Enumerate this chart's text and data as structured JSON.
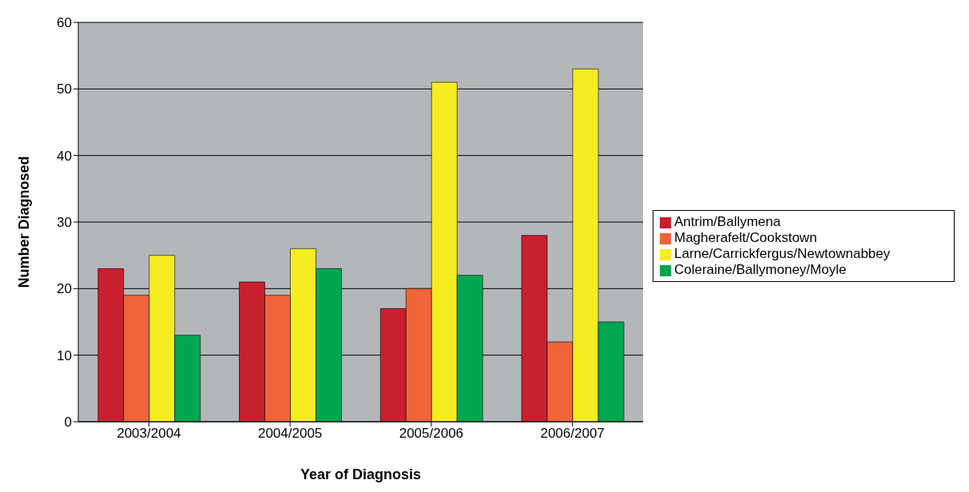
{
  "chart_data": {
    "type": "bar",
    "xlabel": "Year of Diagnosis",
    "ylabel": "Number Diagnosed",
    "categories": [
      "2003/2004",
      "2004/2005",
      "2005/2006",
      "2006/2007"
    ],
    "series": [
      {
        "name": "Antrim/Ballymena",
        "color": "#c8202f",
        "values": [
          23,
          21,
          17,
          28
        ]
      },
      {
        "name": "Magherafelt/Cookstown",
        "color": "#f0643a",
        "values": [
          19,
          19,
          20,
          12
        ]
      },
      {
        "name": "Larne/Carrickfergus/Newtownabbey",
        "color": "#f5ec22",
        "values": [
          25,
          26,
          51,
          53
        ]
      },
      {
        "name": "Coleraine/Ballymoney/Moyle",
        "color": "#00a650",
        "values": [
          13,
          23,
          22,
          15
        ]
      }
    ],
    "ylim": [
      0,
      60
    ],
    "yticks": [
      0,
      10,
      20,
      30,
      40,
      50,
      60
    ],
    "grid": "y",
    "legend": "right"
  }
}
